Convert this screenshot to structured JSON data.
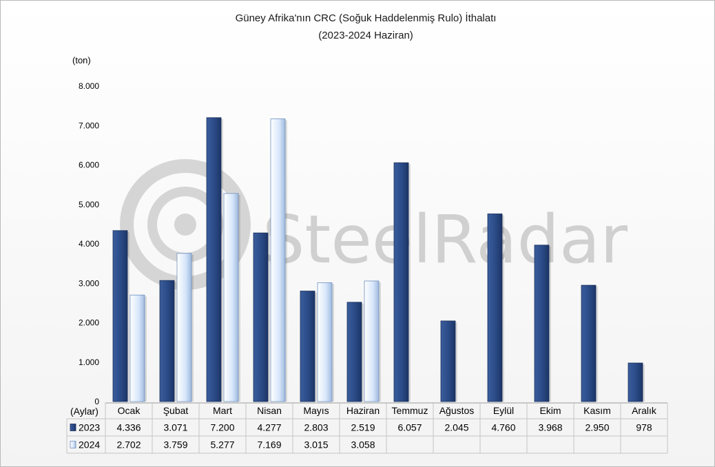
{
  "watermark": {
    "text": "SteelRadar"
  },
  "chart_data": {
    "type": "bar",
    "title": "Güney Afrika'nın CRC (Soğuk Haddelenmiş Rulo) İthalatı",
    "subtitle": "(2023-2024 Haziran)",
    "ylabel": "(ton)",
    "xlabel": "(Aylar)",
    "ylim": [
      0,
      8000
    ],
    "yticks": [
      "0",
      "1.000",
      "2.000",
      "3.000",
      "4.000",
      "5.000",
      "6.000",
      "7.000",
      "8.000"
    ],
    "categories": [
      "Ocak",
      "Şubat",
      "Mart",
      "Nisan",
      "Mayıs",
      "Haziran",
      "Temmuz",
      "Ağustos",
      "Eylül",
      "Ekim",
      "Kasım",
      "Aralık"
    ],
    "series": [
      {
        "name": "2023",
        "color": "#2f4f8a",
        "values": [
          4336,
          3071,
          7200,
          4277,
          2803,
          2519,
          6057,
          2045,
          4760,
          3968,
          2950,
          978
        ],
        "labels": [
          "4.336",
          "3.071",
          "7.200",
          "4.277",
          "2.803",
          "2.519",
          "6.057",
          "2.045",
          "4.760",
          "3.968",
          "2.950",
          "978"
        ]
      },
      {
        "name": "2024",
        "color": "#c9dcf5",
        "values": [
          2702,
          3759,
          5277,
          7169,
          3015,
          3058,
          null,
          null,
          null,
          null,
          null,
          null
        ],
        "labels": [
          "2.702",
          "3.759",
          "5.277",
          "7.169",
          "3.015",
          "3.058",
          "",
          "",
          "",
          "",
          "",
          ""
        ]
      }
    ],
    "grid": false,
    "legend": "data-table-left"
  }
}
